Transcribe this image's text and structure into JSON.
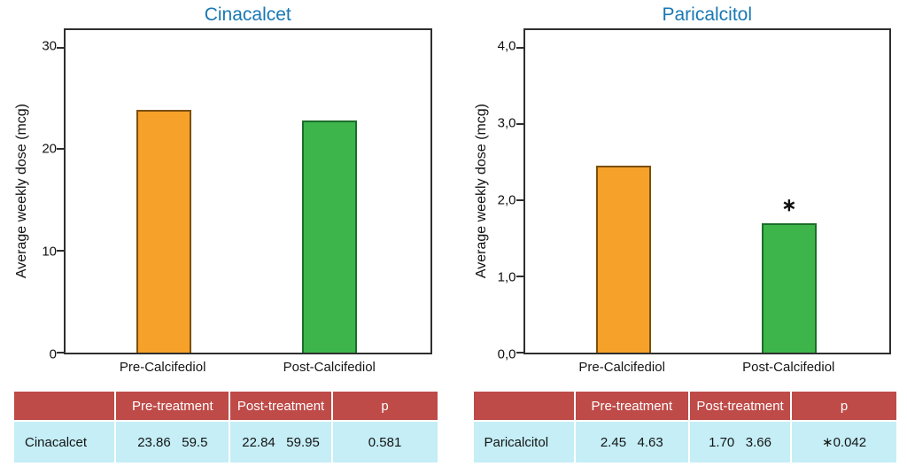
{
  "chart_data": [
    {
      "type": "bar",
      "title": "Cinacalcet",
      "ylabel": "Average weekly dose (mcg)",
      "xlabel": "",
      "categories": [
        "Pre-Calcifediol",
        "Post-Calcifediol"
      ],
      "values": [
        23.86,
        22.84
      ],
      "ylim": [
        0,
        31.7
      ],
      "ytick_values": [
        0,
        10,
        20,
        30
      ],
      "yticks": [
        "0",
        "10",
        "20",
        "30"
      ],
      "bar_colors": [
        "#F6A12A",
        "#3DB54A"
      ],
      "bar_border_colors": [
        "#7c4f0d",
        "#1c6d2b"
      ],
      "bar_annotations": [
        "",
        ""
      ],
      "grid": false,
      "legend": false
    },
    {
      "type": "bar",
      "title": "Paricalcitol",
      "ylabel": "Average weekly dose (mcg)",
      "xlabel": "",
      "categories": [
        "Pre-Calcifediol",
        "Post-Calcifediol"
      ],
      "values": [
        2.45,
        1.7
      ],
      "ylim": [
        0,
        4.23
      ],
      "ytick_values": [
        0,
        1,
        2,
        3,
        4
      ],
      "yticks": [
        "0,0",
        "1,0",
        "2,0",
        "3,0",
        "4,0"
      ],
      "bar_colors": [
        "#F6A12A",
        "#3DB54A"
      ],
      "bar_border_colors": [
        "#7c4f0d",
        "#1c6d2b"
      ],
      "bar_annotations": [
        "",
        "∗"
      ],
      "grid": false,
      "legend": false
    }
  ],
  "tables": [
    {
      "headers": [
        "",
        "Pre-treatment",
        "Post-treatment",
        "p"
      ],
      "rows": [
        [
          "Cinacalcet",
          "23.86   59.5",
          "22.84   59.95",
          "0.581"
        ]
      ]
    },
    {
      "headers": [
        "",
        "Pre-treatment",
        "Post-treatment",
        "p"
      ],
      "rows": [
        [
          "Paricalcitol",
          "2.45   4.63",
          "1.70   3.66",
          "∗0.042"
        ]
      ]
    }
  ],
  "colors": {
    "title_blue": "#1878B4",
    "table_header_bg": "#BE4B48",
    "table_row_bg": "#C5EEF6",
    "bar_orange": "#F6A12A",
    "bar_green": "#3DB54A",
    "axis_border": "#2e2e2e"
  }
}
